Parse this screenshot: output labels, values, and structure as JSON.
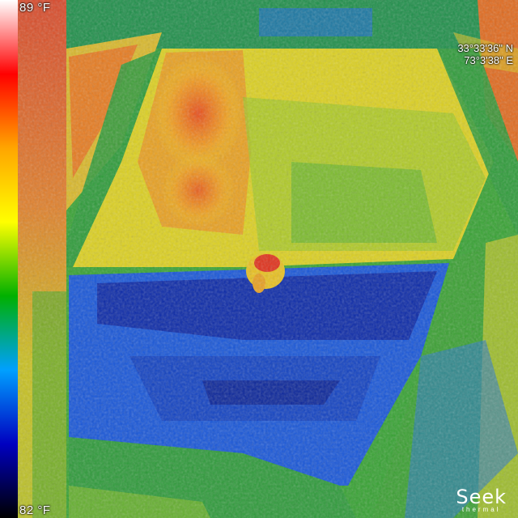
{
  "scale": {
    "max_label": "89 °F",
    "min_label": "82 °F",
    "gradient_colors": [
      "#ffffff",
      "#ff0000",
      "#ffa500",
      "#ffff00",
      "#00b000",
      "#00a0ff",
      "#0000c0",
      "#000000"
    ]
  },
  "gps": {
    "latitude": "33°33'36\" N",
    "longitude": "73°3'38\" E"
  },
  "logo": {
    "word": "Seek",
    "sub": "thermal"
  },
  "palette": {
    "hot": "#e83a1e",
    "warm": "#f0c020",
    "mid": "#3aa82a",
    "cool": "#1a6ae0",
    "cold": "#0a1a9a"
  }
}
